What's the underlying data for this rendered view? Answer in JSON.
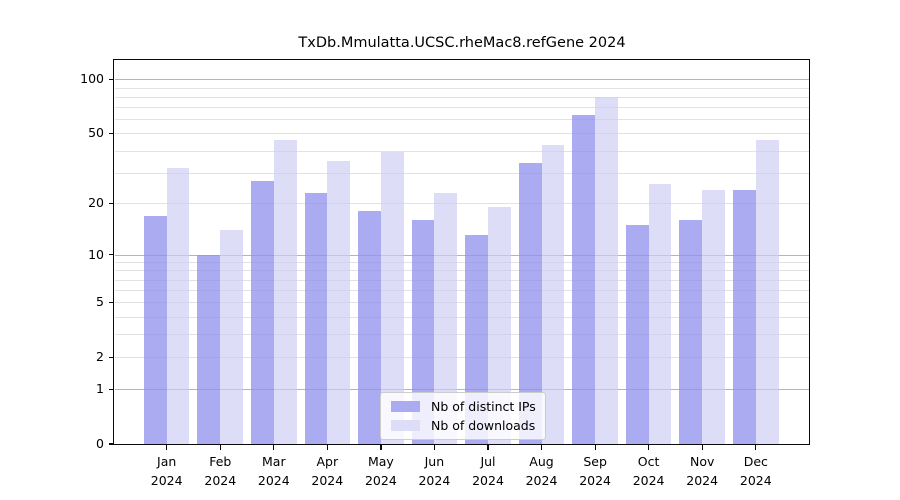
{
  "title": "TxDb.Mmulatta.UCSC.rheMac8.refGene 2024",
  "chart_data": {
    "type": "bar",
    "title": "TxDb.Mmulatta.UCSC.rheMac8.refGene 2024",
    "y_scale": "log10(value+1)",
    "grid": true,
    "legend_position": "lower center",
    "ylim": [
      0,
      128
    ],
    "y_ticks": [
      0,
      1,
      2,
      5,
      10,
      20,
      50,
      100
    ],
    "y_major_gridlines": [
      1,
      10,
      100
    ],
    "y_minor_gridlines": [
      2,
      3,
      4,
      5,
      6,
      7,
      8,
      9,
      20,
      30,
      40,
      50,
      60,
      70,
      80,
      90
    ],
    "x_tick_months": [
      "Jan",
      "Feb",
      "Mar",
      "Apr",
      "May",
      "Jun",
      "Jul",
      "Aug",
      "Sep",
      "Oct",
      "Nov",
      "Dec"
    ],
    "x_tick_year": "2024",
    "categories": [
      "Jan 2024",
      "Feb 2024",
      "Mar 2024",
      "Apr 2024",
      "May 2024",
      "Jun 2024",
      "Jul 2024",
      "Aug 2024",
      "Sep 2024",
      "Oct 2024",
      "Nov 2024",
      "Dec 2024"
    ],
    "series": [
      {
        "name": "Nb of distinct IPs",
        "color": "#a8a8f0",
        "values": [
          17,
          10,
          27,
          23,
          18,
          16,
          13,
          34,
          63,
          15,
          16,
          24
        ]
      },
      {
        "name": "Nb of downloads",
        "color": "#dcdcf8",
        "values": [
          32,
          14,
          46,
          35,
          39,
          23,
          19,
          43,
          80,
          26,
          24,
          46
        ]
      }
    ]
  }
}
